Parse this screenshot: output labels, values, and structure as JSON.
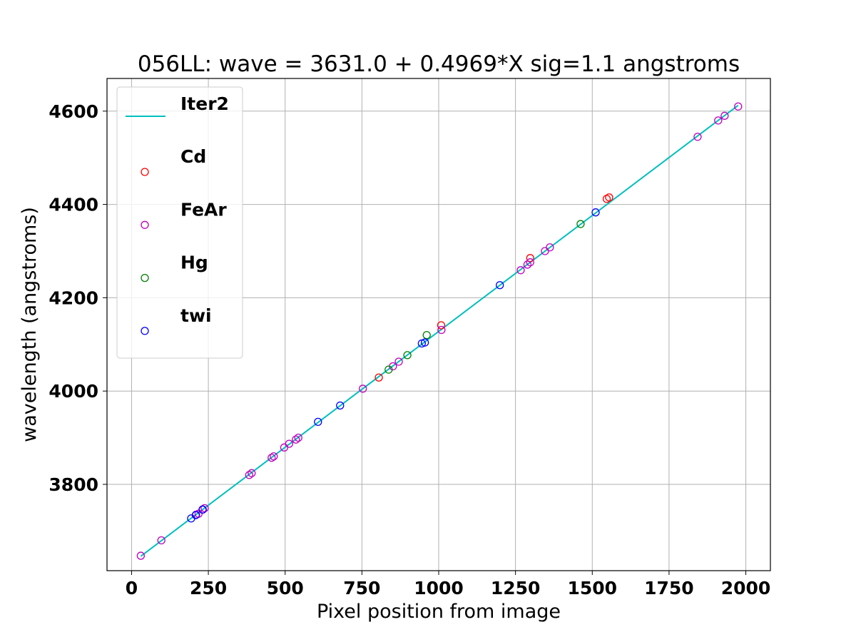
{
  "chart_data": {
    "type": "scatter",
    "title": "056LL:  wave = 3631.0 + 0.4969*X  sig=1.1 angstroms",
    "xlabel": "Pixel position from image",
    "ylabel": "wavelength (angstroms)",
    "xlim": [
      -80,
      2080
    ],
    "ylim": [
      3615,
      4670
    ],
    "xticks": [
      0,
      250,
      500,
      750,
      1000,
      1250,
      1500,
      1750,
      2000
    ],
    "yticks": [
      3800,
      4000,
      4200,
      4400,
      4600
    ],
    "grid": true,
    "legend_position": "top-left",
    "fit": {
      "name": "Iter2",
      "color": "#00bfbf",
      "intercept": 3631.0,
      "slope": 0.4969,
      "x_range": [
        30,
        1975
      ]
    },
    "series": [
      {
        "name": "Cd",
        "color": "#ff0000",
        "points": [
          [
            805,
            4029
          ],
          [
            1008,
            4141
          ],
          [
            1298,
            4285
          ],
          [
            1547,
            4412
          ],
          [
            1555,
            4415
          ]
        ]
      },
      {
        "name": "FeAr",
        "color": "#bf00bf",
        "points": [
          [
            30,
            3647
          ],
          [
            97,
            3680
          ],
          [
            210,
            3735
          ],
          [
            218,
            3737
          ],
          [
            232,
            3746
          ],
          [
            238,
            3749
          ],
          [
            383,
            3820
          ],
          [
            391,
            3824
          ],
          [
            456,
            3857
          ],
          [
            463,
            3860
          ],
          [
            497,
            3879
          ],
          [
            513,
            3887
          ],
          [
            535,
            3896
          ],
          [
            543,
            3900
          ],
          [
            753,
            4005
          ],
          [
            851,
            4053
          ],
          [
            870,
            4063
          ],
          [
            1009,
            4131
          ],
          [
            1267,
            4259
          ],
          [
            1289,
            4271
          ],
          [
            1298,
            4276
          ],
          [
            1346,
            4300
          ],
          [
            1362,
            4308
          ],
          [
            1843,
            4545
          ],
          [
            1910,
            4580
          ],
          [
            1931,
            4590
          ],
          [
            1975,
            4610
          ]
        ]
      },
      {
        "name": "Hg",
        "color": "#008000",
        "points": [
          [
            837,
            4046
          ],
          [
            898,
            4077
          ],
          [
            961,
            4120
          ],
          [
            1462,
            4358
          ]
        ]
      },
      {
        "name": "twi",
        "color": "#0000ff",
        "points": [
          [
            194,
            3727
          ],
          [
            209,
            3734
          ],
          [
            231,
            3746
          ],
          [
            607,
            3934
          ],
          [
            679,
            3969
          ],
          [
            945,
            4102
          ],
          [
            955,
            4104
          ],
          [
            1199,
            4227
          ],
          [
            1511,
            4383
          ]
        ]
      }
    ]
  }
}
